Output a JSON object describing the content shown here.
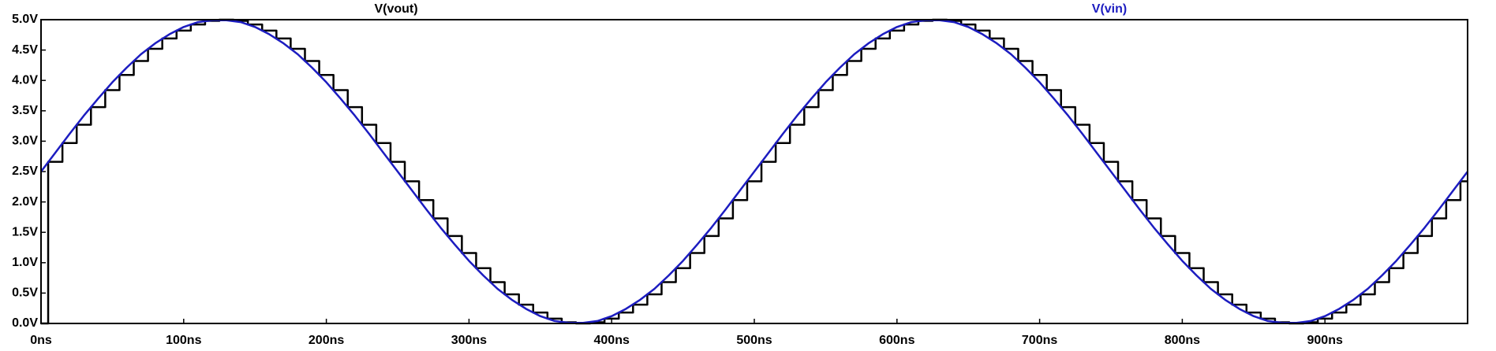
{
  "chart_data": {
    "type": "line",
    "series": [
      {
        "name": "V(vout)",
        "color": "#000000",
        "step": "post",
        "x": [
          0,
          5,
          15,
          25,
          35,
          45,
          55,
          65,
          75,
          85,
          95,
          105,
          115,
          125,
          135,
          145,
          155,
          165,
          175,
          185,
          195,
          205,
          215,
          225,
          235,
          245,
          255,
          265,
          275,
          285,
          295,
          305,
          315,
          325,
          335,
          345,
          355,
          365,
          375,
          385,
          395,
          405,
          415,
          425,
          435,
          445,
          455,
          465,
          475,
          485,
          495,
          505,
          515,
          525,
          535,
          545,
          555,
          565,
          575,
          585,
          595,
          605,
          615,
          625,
          635,
          645,
          655,
          665,
          675,
          685,
          695,
          705,
          715,
          725,
          735,
          745,
          755,
          765,
          775,
          785,
          795,
          805,
          815,
          825,
          835,
          845,
          855,
          865,
          875,
          885,
          895,
          905,
          915,
          925,
          935,
          945,
          955,
          965,
          975,
          985,
          995
        ],
        "values": [
          0,
          2.66,
          2.97,
          3.27,
          3.56,
          3.84,
          4.09,
          4.32,
          4.52,
          4.69,
          4.82,
          4.92,
          4.98,
          5,
          4.98,
          4.92,
          4.82,
          4.69,
          4.52,
          4.32,
          4.09,
          3.84,
          3.56,
          3.27,
          2.97,
          2.66,
          2.34,
          2.03,
          1.73,
          1.44,
          1.16,
          0.91,
          0.68,
          0.48,
          0.31,
          0.18,
          0.08,
          0.02,
          0,
          0.02,
          0.08,
          0.18,
          0.31,
          0.48,
          0.68,
          0.91,
          1.16,
          1.44,
          1.73,
          2.03,
          2.34,
          2.66,
          2.97,
          3.27,
          3.56,
          3.84,
          4.09,
          4.32,
          4.52,
          4.69,
          4.82,
          4.92,
          4.98,
          5,
          4.98,
          4.92,
          4.82,
          4.69,
          4.52,
          4.32,
          4.09,
          3.84,
          3.56,
          3.27,
          2.97,
          2.66,
          2.34,
          2.03,
          1.73,
          1.44,
          1.16,
          0.91,
          0.68,
          0.48,
          0.31,
          0.18,
          0.08,
          0.02,
          0,
          0.02,
          0.08,
          0.18,
          0.31,
          0.48,
          0.68,
          0.91,
          1.16,
          1.44,
          1.73,
          2.03,
          2.34
        ]
      },
      {
        "name": "V(vin)",
        "color": "#1c1cc0",
        "x": [
          0,
          10,
          20,
          30,
          40,
          50,
          60,
          70,
          80,
          90,
          100,
          110,
          120,
          130,
          140,
          150,
          160,
          170,
          180,
          190,
          200,
          210,
          220,
          230,
          240,
          250,
          260,
          270,
          280,
          290,
          300,
          310,
          320,
          330,
          340,
          350,
          360,
          370,
          380,
          390,
          400,
          410,
          420,
          430,
          440,
          450,
          460,
          470,
          480,
          490,
          500,
          510,
          520,
          530,
          540,
          550,
          560,
          570,
          580,
          590,
          600,
          610,
          620,
          630,
          640,
          650,
          660,
          670,
          680,
          690,
          700,
          710,
          720,
          730,
          740,
          750,
          760,
          770,
          780,
          790,
          800,
          810,
          820,
          830,
          840,
          850,
          860,
          870,
          880,
          890,
          900,
          910,
          920,
          930,
          940,
          950,
          960,
          970,
          980,
          990,
          1000
        ],
        "values": [
          2.5,
          2.81,
          3.12,
          3.42,
          3.7,
          3.97,
          4.21,
          4.43,
          4.61,
          4.76,
          4.88,
          4.96,
          4.99,
          4.99,
          4.96,
          4.88,
          4.76,
          4.61,
          4.43,
          4.21,
          3.97,
          3.7,
          3.42,
          3.12,
          2.81,
          2.5,
          2.19,
          1.88,
          1.58,
          1.3,
          1.03,
          0.79,
          0.57,
          0.39,
          0.24,
          0.12,
          0.04,
          0.01,
          0.01,
          0.04,
          0.12,
          0.24,
          0.39,
          0.57,
          0.79,
          1.03,
          1.3,
          1.58,
          1.88,
          2.19,
          2.5,
          2.81,
          3.12,
          3.42,
          3.7,
          3.97,
          4.21,
          4.43,
          4.61,
          4.76,
          4.88,
          4.96,
          4.99,
          4.99,
          4.96,
          4.88,
          4.76,
          4.61,
          4.43,
          4.21,
          3.97,
          3.7,
          3.42,
          3.12,
          2.81,
          2.5,
          2.19,
          1.88,
          1.58,
          1.3,
          1.03,
          0.79,
          0.57,
          0.39,
          0.24,
          0.12,
          0.04,
          0.01,
          0.01,
          0.04,
          0.12,
          0.24,
          0.39,
          0.57,
          0.79,
          1.03,
          1.3,
          1.58,
          1.88,
          2.19,
          2.5
        ]
      }
    ],
    "xlim": [
      0,
      1000
    ],
    "xticks": [
      {
        "value": 0,
        "label": "0ns"
      },
      {
        "value": 100,
        "label": "100ns"
      },
      {
        "value": 200,
        "label": "200ns"
      },
      {
        "value": 300,
        "label": "300ns"
      },
      {
        "value": 400,
        "label": "400ns"
      },
      {
        "value": 500,
        "label": "500ns"
      },
      {
        "value": 600,
        "label": "600ns"
      },
      {
        "value": 700,
        "label": "700ns"
      },
      {
        "value": 800,
        "label": "800ns"
      },
      {
        "value": 900,
        "label": "900ns"
      }
    ],
    "ylim": [
      0,
      5
    ],
    "yticks": [
      {
        "value": 0,
        "label": "0.0V"
      },
      {
        "value": 0.5,
        "label": "0.5V"
      },
      {
        "value": 1,
        "label": "1.0V"
      },
      {
        "value": 1.5,
        "label": "1.5V"
      },
      {
        "value": 2,
        "label": "2.0V"
      },
      {
        "value": 2.5,
        "label": "2.5V"
      },
      {
        "value": 3,
        "label": "3.0V"
      },
      {
        "value": 3.5,
        "label": "3.5V"
      },
      {
        "value": 4,
        "label": "4.0V"
      },
      {
        "value": 4.5,
        "label": "4.5V"
      },
      {
        "value": 5,
        "label": "5.0V"
      }
    ],
    "grid": false
  }
}
